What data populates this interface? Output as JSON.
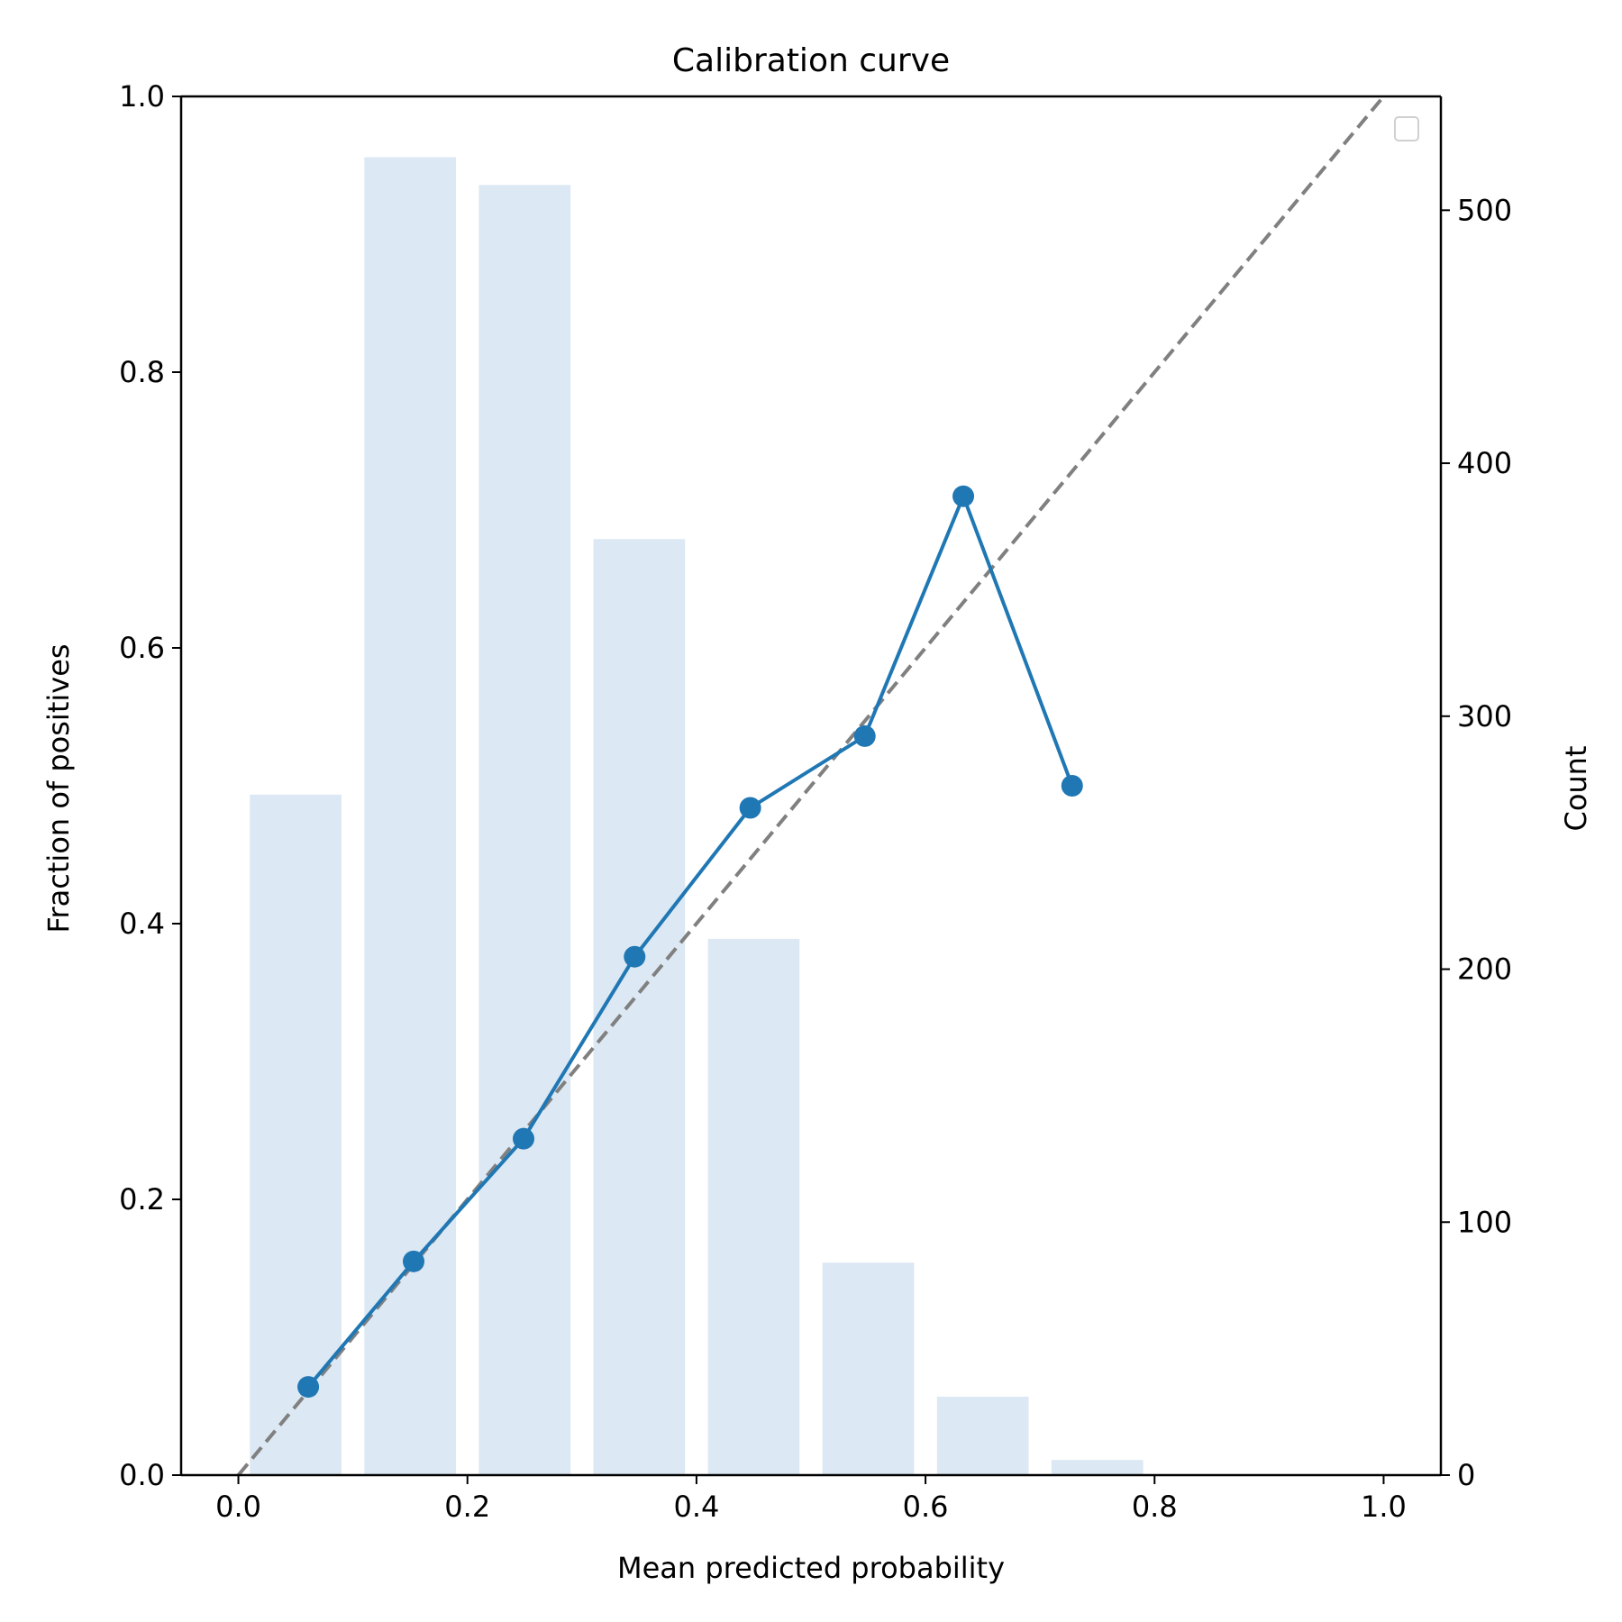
{
  "chart_data": {
    "type": "line",
    "title": "Calibration curve",
    "xlabel": "Mean predicted probability",
    "ylabel": "Fraction of positives",
    "y2label": "Count",
    "xlim": [
      -0.05,
      1.05
    ],
    "ylim": [
      0,
      1
    ],
    "y2lim": [
      0,
      545
    ],
    "grid": false,
    "legend": "top-right (empty)",
    "xticks": [
      "0.0",
      "0.2",
      "0.4",
      "0.6",
      "0.8",
      "1.0"
    ],
    "yticks": [
      "0.0",
      "0.2",
      "0.4",
      "0.6",
      "0.8",
      "1.0"
    ],
    "y2ticks": [
      "0",
      "100",
      "200",
      "300",
      "400",
      "500"
    ],
    "calibration": {
      "x": [
        0.061,
        0.153,
        0.249,
        0.346,
        0.447,
        0.547,
        0.633,
        0.728
      ],
      "y": [
        0.064,
        0.155,
        0.244,
        0.376,
        0.484,
        0.536,
        0.71,
        0.5
      ]
    },
    "reference_line": {
      "x": [
        0,
        1
      ],
      "y": [
        0,
        1
      ]
    },
    "histogram": {
      "centers": [
        0.05,
        0.15,
        0.25,
        0.35,
        0.45,
        0.55,
        0.65,
        0.75
      ],
      "counts": [
        269,
        521,
        510,
        370,
        212,
        84,
        31,
        6
      ],
      "width": 0.08
    },
    "colors": {
      "line": "#1f77b4",
      "bars": "#dce8f3",
      "reference": "#808080"
    }
  }
}
